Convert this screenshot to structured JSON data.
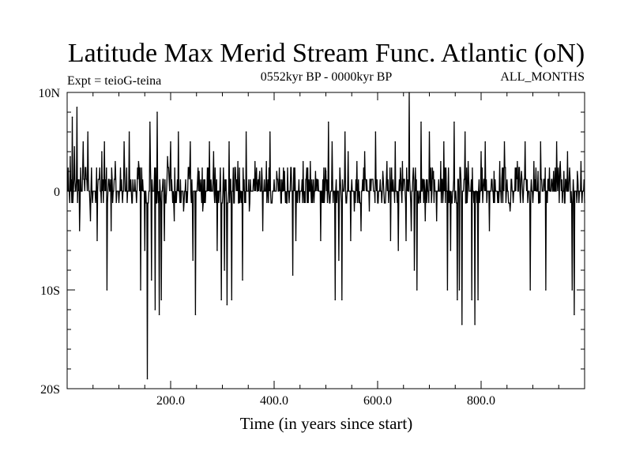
{
  "chart_data": {
    "type": "line",
    "title": "Latitude Max Merid Stream Func. Atlantic (oN)",
    "subtitle_left": "Expt = teioG-teina",
    "subtitle_center": "0552kyr BP - 0000kyr BP",
    "subtitle_right": "ALL_MONTHS",
    "xlabel": "Time (in years since start)",
    "ylabel": "",
    "xlim": [
      0,
      1000
    ],
    "ylim": [
      -20,
      10
    ],
    "x_ticks": [
      {
        "value": 200,
        "label": "200.0"
      },
      {
        "value": 400,
        "label": "400.0"
      },
      {
        "value": 600,
        "label": "600.0"
      },
      {
        "value": 800,
        "label": "800.0"
      }
    ],
    "y_ticks": [
      {
        "value": 10,
        "label": "10N"
      },
      {
        "value": 0,
        "label": "0"
      },
      {
        "value": -10,
        "label": "10S"
      },
      {
        "value": -20,
        "label": "20S"
      }
    ],
    "series": [
      {
        "name": "Latitude Max Merid Stream Func. Atlantic",
        "color": "#000000",
        "seed": 7,
        "baseline": 0,
        "spikes": [
          {
            "x": 6,
            "y": 3.5
          },
          {
            "x": 10,
            "y": 7.5
          },
          {
            "x": 14,
            "y": 4.5
          },
          {
            "x": 19,
            "y": 8.5
          },
          {
            "x": 24,
            "y": -4
          },
          {
            "x": 31,
            "y": 5
          },
          {
            "x": 40,
            "y": 6
          },
          {
            "x": 45,
            "y": -3
          },
          {
            "x": 58,
            "y": -5
          },
          {
            "x": 67,
            "y": 4
          },
          {
            "x": 72,
            "y": 5
          },
          {
            "x": 77,
            "y": -10
          },
          {
            "x": 85,
            "y": -4
          },
          {
            "x": 93,
            "y": 3
          },
          {
            "x": 110,
            "y": 5
          },
          {
            "x": 120,
            "y": 6
          },
          {
            "x": 138,
            "y": 3
          },
          {
            "x": 142,
            "y": -10
          },
          {
            "x": 150,
            "y": -6
          },
          {
            "x": 155,
            "y": -19
          },
          {
            "x": 160,
            "y": 7
          },
          {
            "x": 163,
            "y": -9
          },
          {
            "x": 170,
            "y": -12
          },
          {
            "x": 174,
            "y": 8
          },
          {
            "x": 178,
            "y": -12.5
          },
          {
            "x": 182,
            "y": -11
          },
          {
            "x": 188,
            "y": -5
          },
          {
            "x": 194,
            "y": 3.5
          },
          {
            "x": 200,
            "y": 5
          },
          {
            "x": 207,
            "y": -3
          },
          {
            "x": 215,
            "y": 6
          },
          {
            "x": 225,
            "y": -2
          },
          {
            "x": 238,
            "y": 5
          },
          {
            "x": 243,
            "y": -7
          },
          {
            "x": 248,
            "y": -12.5
          },
          {
            "x": 255,
            "y": 2
          },
          {
            "x": 262,
            "y": -2
          },
          {
            "x": 275,
            "y": 5
          },
          {
            "x": 283,
            "y": 4
          },
          {
            "x": 290,
            "y": -6
          },
          {
            "x": 298,
            "y": -11
          },
          {
            "x": 304,
            "y": -8
          },
          {
            "x": 309,
            "y": -11.5
          },
          {
            "x": 313,
            "y": 5
          },
          {
            "x": 318,
            "y": -11
          },
          {
            "x": 330,
            "y": 3
          },
          {
            "x": 339,
            "y": -9
          },
          {
            "x": 346,
            "y": 6
          },
          {
            "x": 352,
            "y": -2
          },
          {
            "x": 363,
            "y": 3
          },
          {
            "x": 372,
            "y": 2
          },
          {
            "x": 378,
            "y": -4
          },
          {
            "x": 385,
            "y": 3
          },
          {
            "x": 392,
            "y": 6
          },
          {
            "x": 405,
            "y": 2
          },
          {
            "x": 420,
            "y": 2
          },
          {
            "x": 436,
            "y": -8.5
          },
          {
            "x": 442,
            "y": -5
          },
          {
            "x": 456,
            "y": 3
          },
          {
            "x": 470,
            "y": 3
          },
          {
            "x": 480,
            "y": 2
          },
          {
            "x": 490,
            "y": -5
          },
          {
            "x": 500,
            "y": 2
          },
          {
            "x": 505,
            "y": 7
          },
          {
            "x": 512,
            "y": 5
          },
          {
            "x": 518,
            "y": -11
          },
          {
            "x": 525,
            "y": -7
          },
          {
            "x": 531,
            "y": -11
          },
          {
            "x": 537,
            "y": 6
          },
          {
            "x": 543,
            "y": 4
          },
          {
            "x": 548,
            "y": -5
          },
          {
            "x": 555,
            "y": -2
          },
          {
            "x": 560,
            "y": 3
          },
          {
            "x": 568,
            "y": -4
          },
          {
            "x": 575,
            "y": 4
          },
          {
            "x": 584,
            "y": -2
          },
          {
            "x": 596,
            "y": 6
          },
          {
            "x": 610,
            "y": 2
          },
          {
            "x": 618,
            "y": 3
          },
          {
            "x": 625,
            "y": -5
          },
          {
            "x": 634,
            "y": 5
          },
          {
            "x": 640,
            "y": -6
          },
          {
            "x": 648,
            "y": 3
          },
          {
            "x": 655,
            "y": -5
          },
          {
            "x": 661,
            "y": 10
          },
          {
            "x": 665,
            "y": -4
          },
          {
            "x": 671,
            "y": -8
          },
          {
            "x": 676,
            "y": -10
          },
          {
            "x": 684,
            "y": 7
          },
          {
            "x": 692,
            "y": -3
          },
          {
            "x": 700,
            "y": 6
          },
          {
            "x": 708,
            "y": 2
          },
          {
            "x": 714,
            "y": -3
          },
          {
            "x": 722,
            "y": 3
          },
          {
            "x": 728,
            "y": 5
          },
          {
            "x": 735,
            "y": -10
          },
          {
            "x": 741,
            "y": -6
          },
          {
            "x": 748,
            "y": 7
          },
          {
            "x": 754,
            "y": -11
          },
          {
            "x": 758,
            "y": -10
          },
          {
            "x": 763,
            "y": -13.5
          },
          {
            "x": 769,
            "y": 6
          },
          {
            "x": 775,
            "y": 3
          },
          {
            "x": 782,
            "y": -11
          },
          {
            "x": 788,
            "y": -13.5
          },
          {
            "x": 794,
            "y": -11
          },
          {
            "x": 800,
            "y": 4
          },
          {
            "x": 808,
            "y": 5
          },
          {
            "x": 816,
            "y": -4
          },
          {
            "x": 825,
            "y": 2
          },
          {
            "x": 836,
            "y": 3
          },
          {
            "x": 845,
            "y": 5
          },
          {
            "x": 856,
            "y": -2
          },
          {
            "x": 870,
            "y": 3
          },
          {
            "x": 878,
            "y": 2
          },
          {
            "x": 885,
            "y": 5
          },
          {
            "x": 895,
            "y": -10
          },
          {
            "x": 902,
            "y": 3
          },
          {
            "x": 910,
            "y": 2
          },
          {
            "x": 915,
            "y": 5
          },
          {
            "x": 925,
            "y": -10
          },
          {
            "x": 940,
            "y": 2
          },
          {
            "x": 946,
            "y": 5
          },
          {
            "x": 953,
            "y": 3
          },
          {
            "x": 960,
            "y": 2
          },
          {
            "x": 967,
            "y": 4
          },
          {
            "x": 976,
            "y": -10
          },
          {
            "x": 980,
            "y": -12.5
          },
          {
            "x": 986,
            "y": 2
          },
          {
            "x": 993,
            "y": 3
          }
        ]
      }
    ]
  }
}
